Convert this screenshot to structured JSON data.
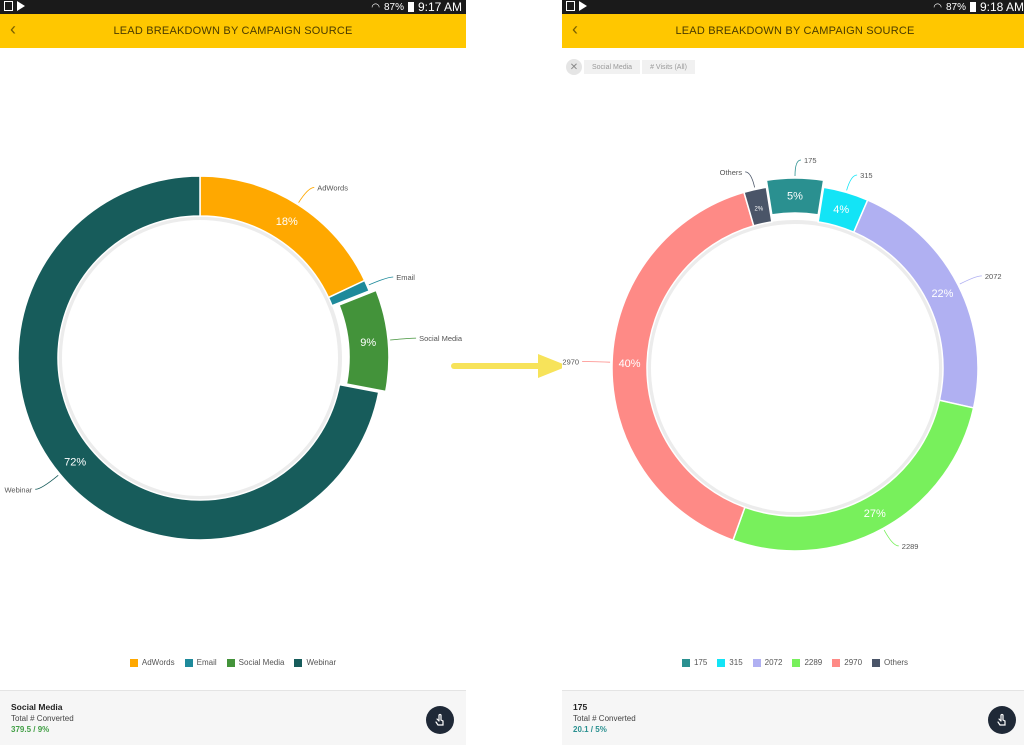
{
  "screens": [
    {
      "status": {
        "battery": "87%",
        "time": "9:17 AM"
      },
      "header": {
        "title": "LEAD BREAKDOWN BY CAMPAIGN SOURCE"
      },
      "legend": [
        "AdWords",
        "Email",
        "Social Media",
        "Webinar"
      ],
      "footer": {
        "title": "Social Media",
        "subtitle": "Total # Converted",
        "value": "379.5 / 9%"
      },
      "colors": {
        "accent": "#ffc700",
        "value": "#43a047"
      }
    },
    {
      "status": {
        "battery": "87%",
        "time": "9:18 AM"
      },
      "header": {
        "title": "LEAD BREAKDOWN BY CAMPAIGN SOURCE"
      },
      "filters": {
        "crumb1": "Social Media",
        "crumb2": "# Visits (All)"
      },
      "legend": [
        "175",
        "315",
        "2072",
        "2289",
        "2970",
        "Others"
      ],
      "footer": {
        "title": "175",
        "subtitle": "Total # Converted",
        "value": "20.1 / 5%"
      },
      "colors": {
        "accent": "#ffc700",
        "value": "#2a9090"
      }
    }
  ],
  "chart_data": [
    {
      "type": "pie",
      "title": "",
      "categories": [
        "AdWords",
        "Email",
        "Social Media",
        "Webinar"
      ],
      "values": [
        18,
        1,
        9,
        72
      ],
      "slice_labels": [
        "18%",
        "",
        "9%",
        "72%"
      ],
      "colors": [
        "#ffa800",
        "#1e8a9b",
        "#43933a",
        "#175c5b"
      ],
      "selected": "Social Media",
      "legend_position": "bottom"
    },
    {
      "type": "pie",
      "title": "",
      "categories": [
        "175",
        "315",
        "2072",
        "2289",
        "2970",
        "Others"
      ],
      "values": [
        5,
        4,
        22,
        27,
        40,
        2
      ],
      "slice_labels": [
        "5%",
        "4%",
        "22%",
        "27%",
        "40%",
        "2%"
      ],
      "colors": [
        "#2a9090",
        "#13e4f6",
        "#b0b0f2",
        "#78f05c",
        "#fe8a86",
        "#4a5568"
      ],
      "selected": "175",
      "legend_position": "bottom"
    }
  ]
}
